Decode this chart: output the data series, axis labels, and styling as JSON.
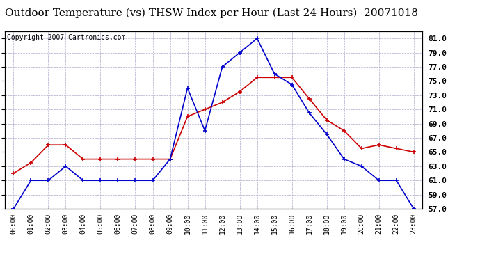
{
  "title": "Outdoor Temperature (vs) THSW Index per Hour (Last 24 Hours)  20071018",
  "copyright": "Copyright 2007 Cartronics.com",
  "hours": [
    "00:00",
    "01:00",
    "02:00",
    "03:00",
    "04:00",
    "05:00",
    "06:00",
    "07:00",
    "08:00",
    "09:00",
    "10:00",
    "11:00",
    "12:00",
    "13:00",
    "14:00",
    "15:00",
    "16:00",
    "17:00",
    "18:00",
    "19:00",
    "20:00",
    "21:00",
    "22:00",
    "23:00"
  ],
  "temp": [
    62,
    63.5,
    66,
    66,
    64,
    64,
    64,
    64,
    64,
    64,
    70,
    71,
    72,
    73.5,
    75.5,
    75.5,
    75.5,
    72.5,
    69.5,
    68,
    65.5,
    66,
    65.5,
    65
  ],
  "thsw": [
    57,
    61,
    61,
    63,
    61,
    61,
    61,
    61,
    61,
    64,
    74,
    68,
    77,
    79,
    81,
    76,
    74.5,
    70.5,
    67.5,
    64,
    63,
    61,
    61,
    57
  ],
  "ylim": [
    57,
    82
  ],
  "yticks": [
    57.0,
    59.0,
    61.0,
    63.0,
    65.0,
    67.0,
    69.0,
    71.0,
    73.0,
    75.0,
    77.0,
    79.0,
    81.0
  ],
  "temp_color": "#cc0000",
  "thsw_color": "#0000cc",
  "bg_color": "#ffffff",
  "grid_color": "#aaaacc",
  "title_fontsize": 11,
  "copyright_fontsize": 7
}
